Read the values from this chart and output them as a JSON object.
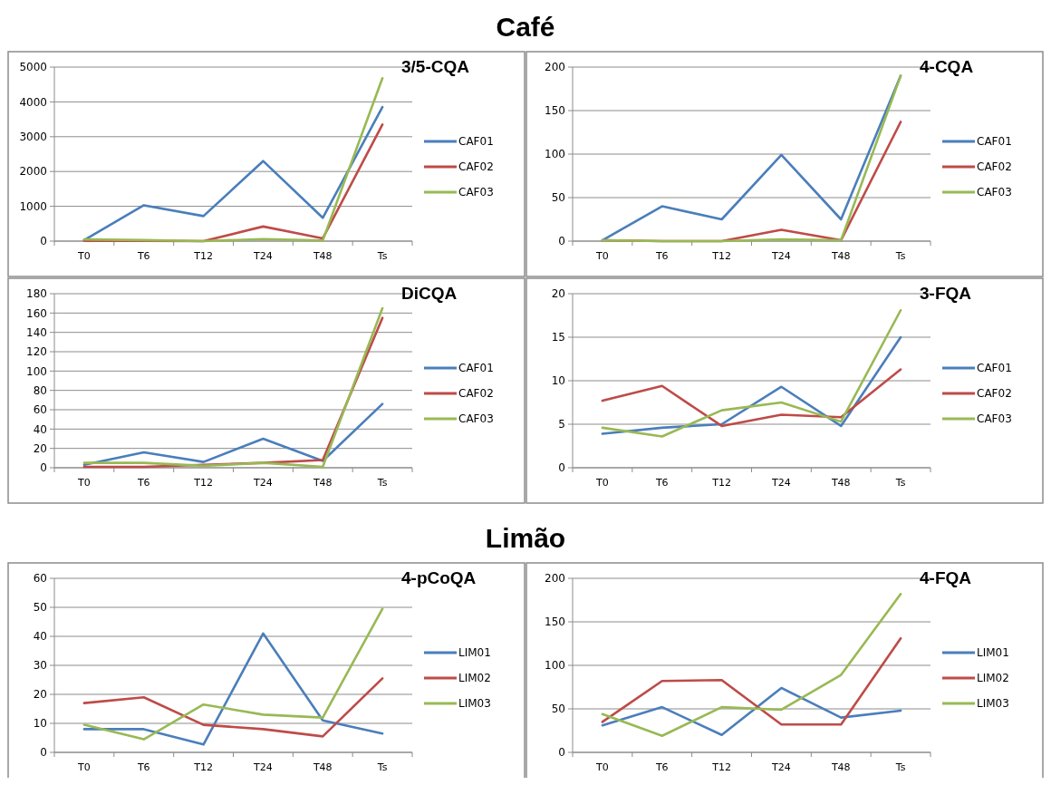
{
  "chart_data": [
    {
      "type": "line",
      "title": "3/5-CQA",
      "annotations": [
        "Café"
      ],
      "categories": [
        "T0",
        "T6",
        "T12",
        "T24",
        "T48",
        "Ts"
      ],
      "ylim": [
        0,
        5000
      ],
      "yticks": [
        0,
        1000,
        2000,
        3000,
        4000,
        5000
      ],
      "grid": "y",
      "legend": "right",
      "series": [
        {
          "name": "CAF01",
          "color": "#4a7ebb",
          "values": [
            30,
            1030,
            720,
            2300,
            670,
            3850
          ]
        },
        {
          "name": "CAF02",
          "color": "#be4b48",
          "values": [
            10,
            10,
            0,
            420,
            80,
            3350
          ]
        },
        {
          "name": "CAF03",
          "color": "#98b954",
          "values": [
            50,
            30,
            0,
            60,
            20,
            4680
          ]
        }
      ]
    },
    {
      "type": "line",
      "title": "4-CQA",
      "categories": [
        "T0",
        "T6",
        "T12",
        "T24",
        "T48",
        "Ts"
      ],
      "ylim": [
        0,
        200
      ],
      "yticks": [
        0,
        50,
        100,
        150,
        200
      ],
      "grid": "y",
      "legend": "right",
      "series": [
        {
          "name": "CAF01",
          "color": "#4a7ebb",
          "values": [
            1,
            40,
            25,
            99,
            25,
            190
          ]
        },
        {
          "name": "CAF02",
          "color": "#be4b48",
          "values": [
            1,
            0,
            0,
            13,
            1,
            137
          ]
        },
        {
          "name": "CAF03",
          "color": "#98b954",
          "values": [
            1,
            0,
            0,
            2,
            1,
            190
          ]
        }
      ]
    },
    {
      "type": "line",
      "title": "DiCQA",
      "categories": [
        "T0",
        "T6",
        "T12",
        "T24",
        "T48",
        "Ts"
      ],
      "ylim": [
        0,
        180
      ],
      "yticks": [
        0,
        20,
        40,
        60,
        80,
        100,
        120,
        140,
        160,
        180
      ],
      "grid": "y",
      "legend": "right",
      "series": [
        {
          "name": "CAF01",
          "color": "#4a7ebb",
          "values": [
            3,
            16,
            6,
            30,
            7,
            66
          ]
        },
        {
          "name": "CAF02",
          "color": "#be4b48",
          "values": [
            1,
            1,
            3,
            5,
            8,
            155
          ]
        },
        {
          "name": "CAF03",
          "color": "#98b954",
          "values": [
            5,
            5,
            2,
            5,
            1,
            165
          ]
        }
      ]
    },
    {
      "type": "line",
      "title": "3-FQA",
      "categories": [
        "T0",
        "T6",
        "T12",
        "T24",
        "T48",
        "Ts"
      ],
      "ylim": [
        0,
        20
      ],
      "yticks": [
        0,
        5,
        10,
        15,
        20
      ],
      "grid": "y",
      "legend": "right",
      "series": [
        {
          "name": "CAF01",
          "color": "#4a7ebb",
          "values": [
            3.9,
            4.6,
            5.0,
            9.3,
            4.8,
            15.0
          ]
        },
        {
          "name": "CAF02",
          "color": "#be4b48",
          "values": [
            7.7,
            9.4,
            4.8,
            6.1,
            5.8,
            11.3
          ]
        },
        {
          "name": "CAF03",
          "color": "#98b954",
          "values": [
            4.6,
            3.6,
            6.6,
            7.5,
            5.3,
            18.1
          ]
        }
      ]
    },
    {
      "type": "line",
      "title": "4-pCoQA",
      "annotations": [
        "Limão"
      ],
      "categories": [
        "T0",
        "T6",
        "T12",
        "T24",
        "T48",
        "Ts"
      ],
      "ylim": [
        0,
        60
      ],
      "yticks": [
        0,
        10,
        20,
        30,
        40,
        50,
        60
      ],
      "grid": "y",
      "legend": "right",
      "series": [
        {
          "name": "LIM01",
          "color": "#4a7ebb",
          "values": [
            8,
            8,
            2.7,
            41,
            11,
            6.5
          ]
        },
        {
          "name": "LIM02",
          "color": "#be4b48",
          "values": [
            17,
            19,
            9.5,
            8,
            5.5,
            25.5
          ]
        },
        {
          "name": "LIM03",
          "color": "#98b954",
          "values": [
            9.5,
            4.5,
            16.5,
            13,
            12,
            49.5
          ]
        }
      ]
    },
    {
      "type": "line",
      "title": "4-FQA",
      "categories": [
        "T0",
        "T6",
        "T12",
        "T24",
        "T48",
        "Ts"
      ],
      "ylim": [
        0,
        200
      ],
      "yticks": [
        0,
        50,
        100,
        150,
        200
      ],
      "grid": "y",
      "legend": "right",
      "series": [
        {
          "name": "LIM01",
          "color": "#4a7ebb",
          "values": [
            31,
            52,
            20,
            74,
            40,
            48
          ]
        },
        {
          "name": "LIM02",
          "color": "#be4b48",
          "values": [
            35,
            82,
            83,
            32,
            32,
            131
          ]
        },
        {
          "name": "LIM03",
          "color": "#98b954",
          "values": [
            44,
            19,
            52,
            49,
            89,
            182
          ]
        }
      ]
    }
  ]
}
